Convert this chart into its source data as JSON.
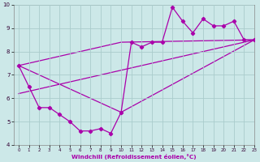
{
  "xlabel": "Windchill (Refroidissement éolien,°C)",
  "background_color": "#cce8e8",
  "line_color": "#aa00aa",
  "grid_color": "#aacccc",
  "series1_x": [
    0,
    1,
    2,
    3,
    4,
    5,
    6,
    7,
    8,
    9,
    10,
    11,
    12,
    13,
    14,
    15,
    16,
    17,
    18,
    19,
    20,
    21,
    22,
    23
  ],
  "series1_y": [
    7.4,
    6.5,
    5.6,
    5.6,
    5.3,
    5.0,
    4.6,
    4.6,
    4.7,
    4.5,
    5.4,
    8.4,
    8.2,
    8.4,
    8.4,
    9.9,
    9.3,
    8.8,
    9.4,
    9.1,
    9.1,
    9.3,
    8.5,
    8.5
  ],
  "series2_x": [
    0,
    10,
    23
  ],
  "series2_y": [
    7.4,
    5.4,
    8.5
  ],
  "series3_x": [
    0,
    10,
    23
  ],
  "series3_y": [
    7.4,
    8.4,
    8.5
  ],
  "series4_x": [
    0,
    23
  ],
  "series4_y": [
    6.2,
    8.5
  ],
  "xlim": [
    -0.5,
    23
  ],
  "ylim": [
    4,
    10
  ],
  "xticks": [
    0,
    1,
    2,
    3,
    4,
    5,
    6,
    7,
    8,
    9,
    10,
    11,
    12,
    13,
    14,
    15,
    16,
    17,
    18,
    19,
    20,
    21,
    22,
    23
  ],
  "yticks": [
    4,
    5,
    6,
    7,
    8,
    9,
    10
  ]
}
